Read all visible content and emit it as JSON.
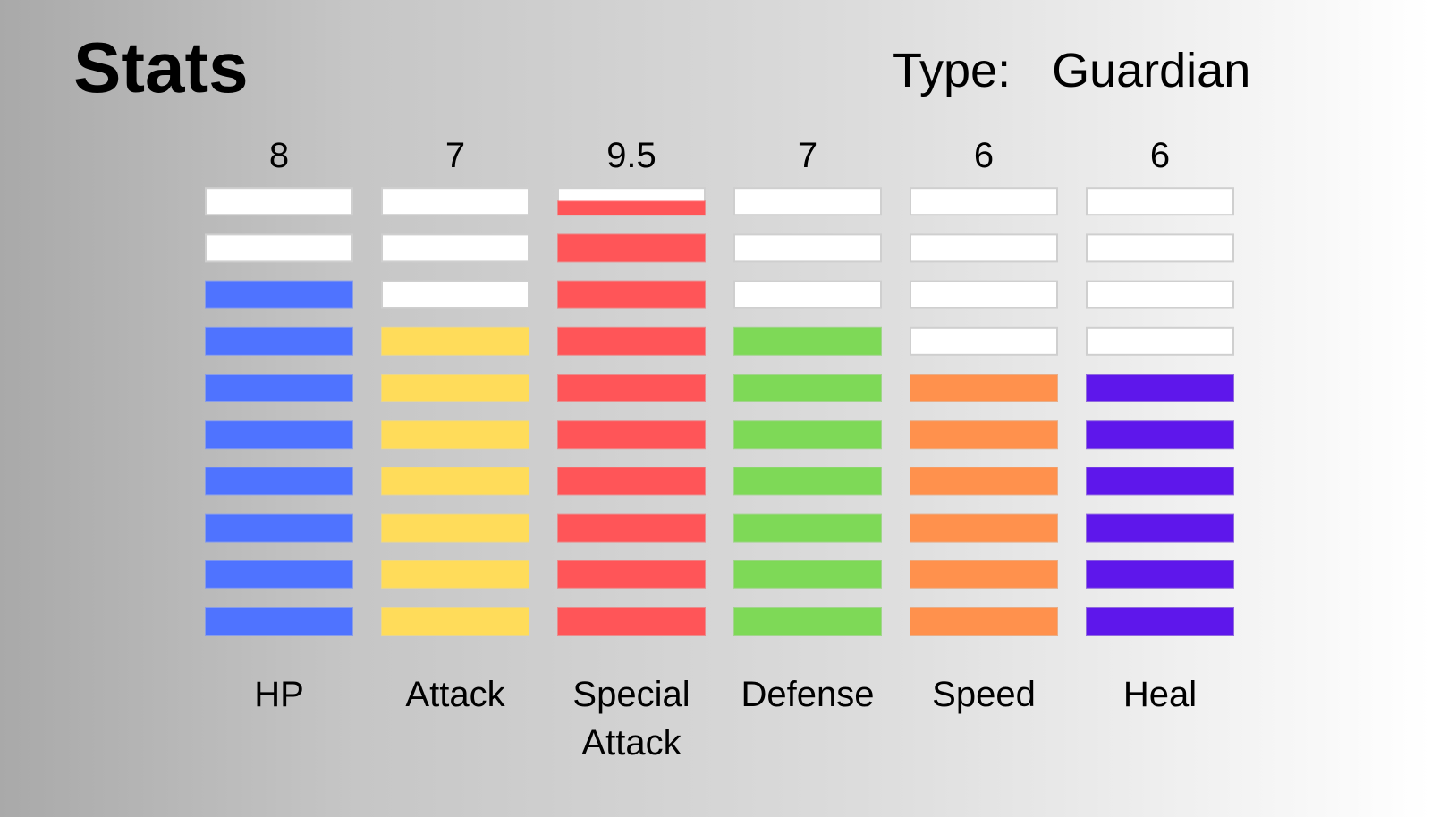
{
  "page": {
    "title": "Stats",
    "type_label": "Type:",
    "type_value": "Guardian"
  },
  "chart_data": {
    "type": "bar",
    "max_segments": 10,
    "categories": [
      "HP",
      "Attack",
      "Special Attack",
      "Defense",
      "Speed",
      "Heal"
    ],
    "category_lines": [
      [
        "HP"
      ],
      [
        "Attack"
      ],
      [
        "Special",
        "Attack"
      ],
      [
        "Defense"
      ],
      [
        "Speed"
      ],
      [
        "Heal"
      ]
    ],
    "values": [
      8,
      7,
      9.5,
      7,
      6,
      6
    ],
    "value_labels": [
      "8",
      "7",
      "9.5",
      "7",
      "6",
      "6"
    ],
    "colors": [
      "#4f73ff",
      "#ffdc5a",
      "#ff5558",
      "#7ed957",
      "#ff914d",
      "#5e17eb"
    ],
    "empty_color": "#ffffff"
  }
}
